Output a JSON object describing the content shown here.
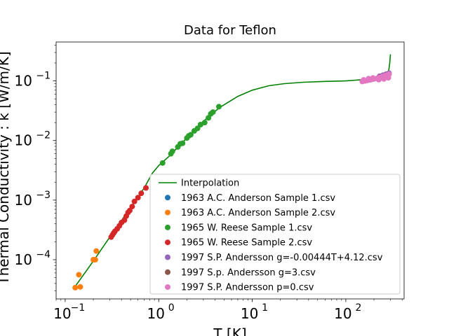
{
  "chart_data": {
    "type": "scatter",
    "title": "Data for Teflon",
    "xlabel": "T [K]",
    "ylabel": "Thermal Conductivity : k [W/m/K]",
    "xscale": "log",
    "yscale": "log",
    "xlim": [
      0.08,
      420
    ],
    "ylim": [
      2.2e-05,
      0.45
    ],
    "x_ticks": [
      {
        "value": 0.1,
        "base": "10",
        "exp": "−1"
      },
      {
        "value": 1,
        "base": "10",
        "exp": "0"
      },
      {
        "value": 10,
        "base": "10",
        "exp": "1"
      },
      {
        "value": 100,
        "base": "10",
        "exp": "2"
      }
    ],
    "y_ticks": [
      {
        "value": 0.0001,
        "base": "10",
        "exp": "−4"
      },
      {
        "value": 0.001,
        "base": "10",
        "exp": "−3"
      },
      {
        "value": 0.01,
        "base": "10",
        "exp": "−2"
      },
      {
        "value": 0.1,
        "base": "10",
        "exp": "−1"
      }
    ],
    "grid": false,
    "legend_position": "lower-right",
    "interpolation": {
      "name": "Interpolation",
      "color": "#008000",
      "x": [
        0.13,
        0.2,
        0.3,
        0.5,
        0.7,
        0.85,
        1.0,
        1.3,
        1.7,
        2.2,
        3,
        4.5,
        7,
        10,
        15,
        22,
        35,
        60,
        100,
        150,
        200,
        250,
        285,
        295,
        300
      ],
      "y": [
        3.7e-05,
        9.5e-05,
        0.00024,
        0.00075,
        0.0016,
        0.0028,
        0.0038,
        0.0055,
        0.0085,
        0.013,
        0.021,
        0.036,
        0.055,
        0.07,
        0.083,
        0.09,
        0.095,
        0.098,
        0.1,
        0.105,
        0.112,
        0.12,
        0.135,
        0.2,
        0.28
      ]
    },
    "series": [
      {
        "name": "1963 A.C. Anderson Sample 1.csv",
        "color": "#1f77b4",
        "x": [],
        "y": []
      },
      {
        "name": "1963 A.C. Anderson Sample 2.csv",
        "color": "#ff7f0e",
        "x": [
          0.128,
          0.14,
          0.145,
          0.2,
          0.21,
          0.215
        ],
        "y": [
          3.4e-05,
          5.6e-05,
          3.5e-05,
          0.0001,
          0.0001,
          0.00014
        ]
      },
      {
        "name": "1965 W. Reese Sample 1.csv",
        "color": "#2ca02c",
        "x": [
          1.1,
          1.35,
          1.4,
          1.6,
          1.7,
          1.8,
          2.0,
          2.1,
          2.2,
          2.4,
          2.6,
          2.8,
          3.1,
          3.4,
          3.6,
          3.8,
          4.4
        ],
        "y": [
          0.0042,
          0.006,
          0.0066,
          0.0078,
          0.0088,
          0.009,
          0.011,
          0.012,
          0.0125,
          0.0145,
          0.016,
          0.0185,
          0.02,
          0.024,
          0.028,
          0.03,
          0.037
        ]
      },
      {
        "name": "1965 W. Reese Sample 2.csv",
        "color": "#d62728",
        "x": [
          0.31,
          0.32,
          0.33,
          0.34,
          0.36,
          0.38,
          0.4,
          0.43,
          0.45,
          0.47,
          0.49,
          0.52,
          0.55,
          0.6,
          0.65,
          0.73
        ],
        "y": [
          0.00024,
          0.00026,
          0.00028,
          0.0003,
          0.00033,
          0.00037,
          0.00042,
          0.00046,
          0.00054,
          0.00062,
          0.00067,
          0.00078,
          0.00095,
          0.0011,
          0.0013,
          0.0016
        ]
      },
      {
        "name": "1997 S.P. Andersson g=-0.00444T+4.12.csv",
        "color": "#9467bd",
        "x": [
          230,
          250,
          270,
          290
        ],
        "y": [
          0.12,
          0.125,
          0.13,
          0.135
        ]
      },
      {
        "name": "1997 S.p. Andersson g=3.csv",
        "color": "#8c564b",
        "x": [
          240,
          265,
          285
        ],
        "y": [
          0.118,
          0.124,
          0.128
        ]
      },
      {
        "name": "1997 S.P. Andersson p=0.csv",
        "color": "#e377c2",
        "x": [
          150,
          160,
          170,
          180,
          190,
          200,
          215,
          230,
          245,
          260,
          275,
          290,
          155,
          175,
          195,
          225,
          255,
          285
        ],
        "y": [
          0.098,
          0.1,
          0.102,
          0.104,
          0.106,
          0.108,
          0.11,
          0.114,
          0.118,
          0.122,
          0.126,
          0.13,
          0.104,
          0.109,
          0.112,
          0.105,
          0.108,
          0.113
        ]
      }
    ]
  }
}
